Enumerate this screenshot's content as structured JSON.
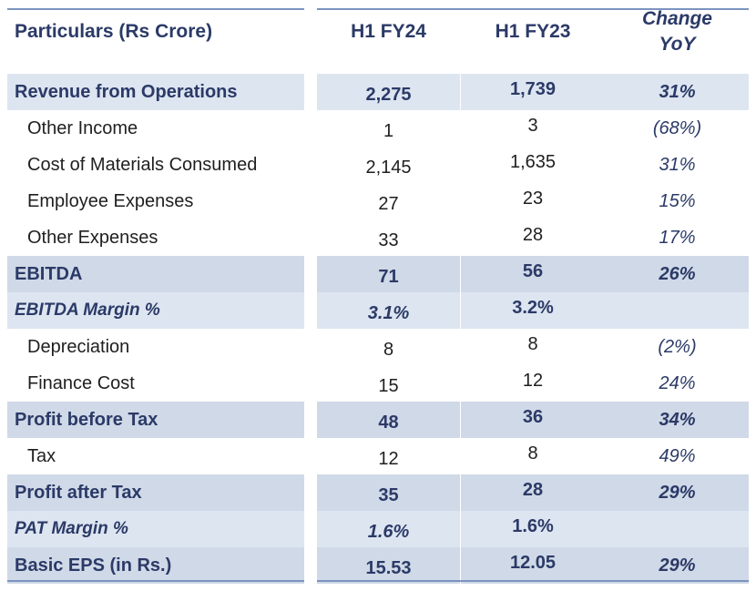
{
  "header": {
    "particulars": "Particulars (Rs Crore)",
    "col1": "H1 FY24",
    "col2": "H1 FY23",
    "col3_line1": "Change",
    "col3_line2": "YoY"
  },
  "rows": [
    {
      "label": "Revenue from Operations",
      "v1": "2,275",
      "v2": "1,739",
      "v3": "31%"
    },
    {
      "label": "Other Income",
      "v1": "1",
      "v2": "3",
      "v3": "(68%)"
    },
    {
      "label": "Cost of Materials Consumed",
      "v1": "2,145",
      "v2": "1,635",
      "v3": "31%"
    },
    {
      "label": "Employee Expenses",
      "v1": "27",
      "v2": "23",
      "v3": "15%"
    },
    {
      "label": "Other Expenses",
      "v1": "33",
      "v2": "28",
      "v3": "17%"
    },
    {
      "label": "EBITDA",
      "v1": "71",
      "v2": "56",
      "v3": "26%"
    },
    {
      "label": "EBITDA Margin %",
      "v1": "3.1%",
      "v2": "3.2%",
      "v3": ""
    },
    {
      "label": "Depreciation",
      "v1": "8",
      "v2": "8",
      "v3": "(2%)"
    },
    {
      "label": "Finance Cost",
      "v1": "15",
      "v2": "12",
      "v3": "24%"
    },
    {
      "label": "Profit before Tax",
      "v1": "48",
      "v2": "36",
      "v3": "34%"
    },
    {
      "label": "Tax",
      "v1": "12",
      "v2": "8",
      "v3": "49%"
    },
    {
      "label": "Profit after Tax",
      "v1": "35",
      "v2": "28",
      "v3": "29%"
    },
    {
      "label": "PAT Margin %",
      "v1": "1.6%",
      "v2": "1.6%",
      "v3": ""
    },
    {
      "label": "Basic EPS (in Rs.)",
      "v1": "15.53",
      "v2": "12.05",
      "v3": "29%"
    }
  ]
}
